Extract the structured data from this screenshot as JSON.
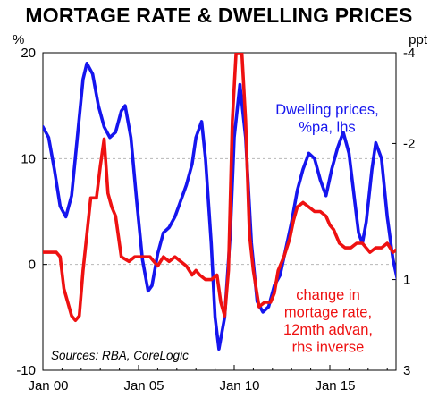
{
  "chart_data": {
    "type": "line",
    "title": "MORTAGE RATE & DWELLING PRICES",
    "left_axis_unit": "%",
    "right_axis_unit": "ppt",
    "x_ticks": [
      "Jan 00",
      "Jan 05",
      "Jan 10",
      "Jan 15"
    ],
    "y_left": {
      "min": -10,
      "max": 20,
      "ticks": [
        20,
        10,
        0,
        -10
      ]
    },
    "y_right": {
      "inverted": true,
      "top": -4,
      "bottom": 3,
      "ticks": [
        -4,
        -2,
        1,
        3
      ]
    },
    "grid": "horizontal dashed",
    "source": "Sources: RBA, CoreLogic",
    "series": [
      {
        "name": "Dwelling prices, %pa, lhs",
        "axis": "left",
        "color": "#1515ee",
        "points": [
          [
            2000.0,
            13.0
          ],
          [
            2000.3,
            12.0
          ],
          [
            2000.6,
            9.0
          ],
          [
            2000.9,
            5.5
          ],
          [
            2001.2,
            4.5
          ],
          [
            2001.5,
            6.5
          ],
          [
            2001.8,
            12.0
          ],
          [
            2002.1,
            17.5
          ],
          [
            2002.3,
            19.0
          ],
          [
            2002.6,
            18.0
          ],
          [
            2002.9,
            15.0
          ],
          [
            2003.2,
            13.0
          ],
          [
            2003.5,
            12.0
          ],
          [
            2003.8,
            12.5
          ],
          [
            2004.1,
            14.5
          ],
          [
            2004.3,
            15.0
          ],
          [
            2004.6,
            12.0
          ],
          [
            2004.9,
            6.0
          ],
          [
            2005.2,
            0.5
          ],
          [
            2005.5,
            -2.5
          ],
          [
            2005.7,
            -2.0
          ],
          [
            2006.0,
            1.0
          ],
          [
            2006.3,
            3.0
          ],
          [
            2006.6,
            3.5
          ],
          [
            2006.9,
            4.5
          ],
          [
            2007.2,
            6.0
          ],
          [
            2007.5,
            7.5
          ],
          [
            2007.8,
            9.5
          ],
          [
            2008.0,
            12.0
          ],
          [
            2008.3,
            13.5
          ],
          [
            2008.5,
            10.0
          ],
          [
            2008.8,
            2.0
          ],
          [
            2009.0,
            -5.0
          ],
          [
            2009.2,
            -8.0
          ],
          [
            2009.5,
            -5.0
          ],
          [
            2009.8,
            3.0
          ],
          [
            2010.0,
            12.0
          ],
          [
            2010.3,
            17.0
          ],
          [
            2010.6,
            12.0
          ],
          [
            2010.9,
            2.0
          ],
          [
            2011.2,
            -3.5
          ],
          [
            2011.5,
            -4.5
          ],
          [
            2011.8,
            -4.0
          ],
          [
            2012.1,
            -2.0
          ],
          [
            2012.4,
            -1.0
          ],
          [
            2012.7,
            1.5
          ],
          [
            2013.0,
            4.0
          ],
          [
            2013.3,
            7.0
          ],
          [
            2013.6,
            9.0
          ],
          [
            2013.9,
            10.5
          ],
          [
            2014.2,
            10.0
          ],
          [
            2014.5,
            8.0
          ],
          [
            2014.8,
            6.5
          ],
          [
            2015.1,
            9.0
          ],
          [
            2015.4,
            11.0
          ],
          [
            2015.7,
            12.5
          ],
          [
            2016.0,
            10.5
          ],
          [
            2016.3,
            6.0
          ],
          [
            2016.5,
            3.0
          ],
          [
            2016.7,
            2.0
          ],
          [
            2016.9,
            4.0
          ],
          [
            2017.2,
            9.0
          ],
          [
            2017.4,
            11.5
          ],
          [
            2017.7,
            10.0
          ],
          [
            2018.0,
            4.5
          ],
          [
            2018.3,
            0.5
          ],
          [
            2018.6,
            -2.0
          ],
          [
            2018.8,
            -3.0
          ]
        ]
      },
      {
        "name": "change in mortage rate, 12mth advan, rhs inverse",
        "axis": "right",
        "color": "#ee1111",
        "points": [
          [
            2000.0,
            0.4
          ],
          [
            2000.7,
            0.4
          ],
          [
            2000.9,
            0.5
          ],
          [
            2001.1,
            1.2
          ],
          [
            2001.5,
            1.8
          ],
          [
            2001.7,
            1.9
          ],
          [
            2001.9,
            1.8
          ],
          [
            2002.1,
            0.8
          ],
          [
            2002.3,
            0.0
          ],
          [
            2002.5,
            -0.8
          ],
          [
            2002.8,
            -0.8
          ],
          [
            2003.0,
            -1.5
          ],
          [
            2003.2,
            -2.1
          ],
          [
            2003.4,
            -0.9
          ],
          [
            2003.6,
            -0.6
          ],
          [
            2003.8,
            -0.4
          ],
          [
            2004.1,
            0.5
          ],
          [
            2004.5,
            0.6
          ],
          [
            2004.8,
            0.5
          ],
          [
            2005.2,
            0.5
          ],
          [
            2005.6,
            0.5
          ],
          [
            2006.0,
            0.7
          ],
          [
            2006.3,
            0.5
          ],
          [
            2006.6,
            0.6
          ],
          [
            2006.9,
            0.5
          ],
          [
            2007.2,
            0.6
          ],
          [
            2007.5,
            0.7
          ],
          [
            2007.8,
            0.9
          ],
          [
            2008.0,
            0.8
          ],
          [
            2008.2,
            0.9
          ],
          [
            2008.5,
            1.0
          ],
          [
            2008.8,
            1.0
          ],
          [
            2009.1,
            0.9
          ],
          [
            2009.3,
            1.5
          ],
          [
            2009.5,
            1.8
          ],
          [
            2009.7,
            0.8
          ],
          [
            2009.9,
            -2.5
          ],
          [
            2010.1,
            -4.0
          ],
          [
            2010.4,
            -4.0
          ],
          [
            2010.6,
            -2.5
          ],
          [
            2010.8,
            0.0
          ],
          [
            2011.0,
            0.8
          ],
          [
            2011.3,
            1.6
          ],
          [
            2011.6,
            1.5
          ],
          [
            2011.9,
            1.5
          ],
          [
            2012.1,
            1.3
          ],
          [
            2012.3,
            0.8
          ],
          [
            2012.6,
            0.5
          ],
          [
            2012.9,
            0.1
          ],
          [
            2013.1,
            -0.3
          ],
          [
            2013.3,
            -0.6
          ],
          [
            2013.6,
            -0.7
          ],
          [
            2013.9,
            -0.6
          ],
          [
            2014.2,
            -0.5
          ],
          [
            2014.5,
            -0.5
          ],
          [
            2014.8,
            -0.4
          ],
          [
            2015.0,
            -0.2
          ],
          [
            2015.2,
            -0.1
          ],
          [
            2015.5,
            0.2
          ],
          [
            2015.8,
            0.3
          ],
          [
            2016.1,
            0.3
          ],
          [
            2016.4,
            0.2
          ],
          [
            2016.7,
            0.2
          ],
          [
            2016.9,
            0.3
          ],
          [
            2017.1,
            0.4
          ],
          [
            2017.4,
            0.3
          ],
          [
            2017.7,
            0.3
          ],
          [
            2018.0,
            0.2
          ],
          [
            2018.3,
            0.4
          ],
          [
            2018.6,
            0.3
          ],
          [
            2018.9,
            0.3
          ],
          [
            2019.1,
            0.3
          ]
        ]
      }
    ],
    "annotations": [
      {
        "lines": [
          "Dwelling prices,",
          "%pa, lhs"
        ],
        "color": "#1515ee"
      },
      {
        "lines": [
          "change in",
          "mortage rate,",
          "12mth advan,",
          "rhs inverse"
        ],
        "color": "#ee1111"
      }
    ]
  }
}
